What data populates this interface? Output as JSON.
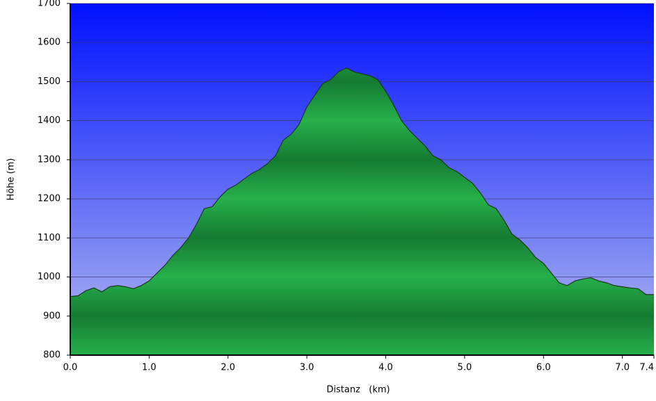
{
  "chart_data": {
    "type": "area",
    "xlabel": "Distanz   (km)",
    "ylabel": "Höhe (m)",
    "x": [
      0.0,
      0.1,
      0.2,
      0.3,
      0.4,
      0.5,
      0.6,
      0.7,
      0.8,
      0.9,
      1.0,
      1.1,
      1.2,
      1.3,
      1.4,
      1.5,
      1.6,
      1.7,
      1.8,
      1.9,
      2.0,
      2.1,
      2.2,
      2.3,
      2.4,
      2.5,
      2.6,
      2.7,
      2.8,
      2.9,
      3.0,
      3.1,
      3.2,
      3.3,
      3.4,
      3.5,
      3.6,
      3.7,
      3.8,
      3.9,
      4.0,
      4.1,
      4.2,
      4.3,
      4.4,
      4.5,
      4.6,
      4.7,
      4.8,
      4.9,
      5.0,
      5.1,
      5.2,
      5.3,
      5.4,
      5.5,
      5.6,
      5.7,
      5.8,
      5.9,
      6.0,
      6.1,
      6.2,
      6.3,
      6.4,
      6.5,
      6.6,
      6.7,
      6.8,
      6.9,
      7.0,
      7.1,
      7.2,
      7.3,
      7.4
    ],
    "values": [
      950,
      952,
      965,
      972,
      962,
      975,
      978,
      975,
      970,
      978,
      990,
      1010,
      1030,
      1055,
      1075,
      1100,
      1135,
      1175,
      1180,
      1205,
      1225,
      1235,
      1250,
      1265,
      1275,
      1290,
      1310,
      1350,
      1365,
      1390,
      1435,
      1465,
      1495,
      1505,
      1525,
      1535,
      1525,
      1520,
      1515,
      1505,
      1475,
      1440,
      1400,
      1375,
      1355,
      1335,
      1310,
      1300,
      1280,
      1270,
      1255,
      1240,
      1215,
      1185,
      1175,
      1145,
      1110,
      1095,
      1075,
      1050,
      1035,
      1010,
      985,
      978,
      990,
      995,
      998,
      990,
      985,
      978,
      975,
      972,
      970,
      955,
      955
    ],
    "color": "#22a844",
    "xlim": [
      0,
      7.4
    ],
    "ylim": [
      800,
      1700
    ],
    "xticks": [
      {
        "value": 0,
        "label": "0.0"
      },
      {
        "value": 1,
        "label": "1.0"
      },
      {
        "value": 2,
        "label": "2.0"
      },
      {
        "value": 3,
        "label": "3.0"
      },
      {
        "value": 4,
        "label": "4.0"
      },
      {
        "value": 5,
        "label": "5.0"
      },
      {
        "value": 6,
        "label": "6.0"
      },
      {
        "value": 7,
        "label": "7.0"
      },
      7.4
    ],
    "yticks": [
      800,
      900,
      1000,
      1100,
      1200,
      1300,
      1400,
      1500,
      1600,
      1700
    ],
    "grid": true
  }
}
